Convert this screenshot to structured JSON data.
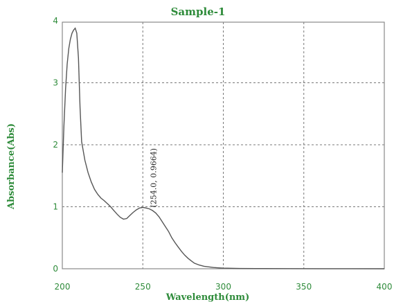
{
  "chart_data": {
    "type": "line",
    "title": "Sample-1",
    "xlabel": "Wavelength(nm)",
    "ylabel": "Absorbance(Abs)",
    "xlim": [
      200,
      400
    ],
    "ylim": [
      0,
      4
    ],
    "xticks": [
      200,
      250,
      300,
      350,
      400
    ],
    "yticks": [
      0,
      1,
      2,
      3,
      4
    ],
    "grid": true,
    "series": [
      {
        "x": [
          200,
          201,
          202,
          203,
          204,
          205,
          206,
          207,
          208,
          209,
          210,
          211,
          212,
          214,
          216,
          218,
          220,
          222,
          224,
          226,
          228,
          230,
          232,
          234,
          236,
          238,
          240,
          242,
          244,
          246,
          248,
          250,
          252,
          254,
          256,
          258,
          260,
          262,
          264,
          266,
          268,
          270,
          272,
          274,
          276,
          278,
          280,
          282,
          285,
          288,
          291,
          294,
          297,
          300,
          305,
          310,
          320,
          340,
          360,
          380,
          400
        ],
        "y": [
          1.55,
          2.3,
          2.9,
          3.3,
          3.55,
          3.7,
          3.8,
          3.85,
          3.88,
          3.8,
          3.4,
          2.6,
          2.05,
          1.75,
          1.55,
          1.4,
          1.28,
          1.2,
          1.14,
          1.1,
          1.05,
          1.0,
          0.94,
          0.88,
          0.83,
          0.8,
          0.81,
          0.86,
          0.91,
          0.95,
          0.98,
          0.99,
          0.98,
          0.9664,
          0.94,
          0.9,
          0.84,
          0.76,
          0.68,
          0.6,
          0.5,
          0.42,
          0.35,
          0.28,
          0.22,
          0.17,
          0.13,
          0.09,
          0.06,
          0.04,
          0.03,
          0.02,
          0.015,
          0.01,
          0.008,
          0.005,
          0.003,
          0.002,
          0.001,
          0.001,
          0.0
        ]
      }
    ],
    "annotations": [
      {
        "x": 254.0,
        "y": 0.9664,
        "text": "(254.0, 0.9664)"
      }
    ]
  }
}
